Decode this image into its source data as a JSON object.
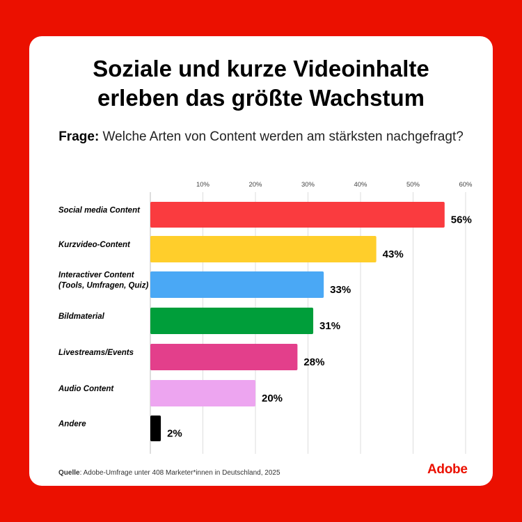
{
  "title_line1": "Soziale und kurze Videoinhalte",
  "title_line2": "erleben das größte Wachstum",
  "question": {
    "label": "Frage:",
    "text": " Welche Arten von Content werden am stärksten nachgefragt?"
  },
  "source": {
    "label": "Quelle",
    "text": ": Adobe-Umfrage unter 408 Marketer*innen in Deutschland, 2025"
  },
  "logo_text": "Adobe",
  "chart_data": {
    "type": "bar",
    "orientation": "horizontal",
    "xlim": [
      0,
      60
    ],
    "x_ticks": [
      10,
      20,
      30,
      40,
      50,
      60
    ],
    "x_tick_labels": [
      "10%",
      "20%",
      "30%",
      "40%",
      "50%",
      "60%"
    ],
    "grid": true,
    "categories": [
      [
        "Social media Content"
      ],
      [
        "Kurzvideo-Content"
      ],
      [
        "Interactiver Content",
        "(Tools, Umfragen, Quiz)"
      ],
      [
        "Bildmaterial"
      ],
      [
        "Livestreams/Events"
      ],
      [
        "Audio Content"
      ],
      [
        "Andere"
      ]
    ],
    "values": [
      56,
      43,
      33,
      31,
      28,
      20,
      2
    ],
    "value_labels": [
      "56%",
      "43%",
      "33%",
      "31%",
      "28%",
      "20%",
      "2%"
    ],
    "colors": [
      "#fa3b3f",
      "#ffce2b",
      "#4aa8f5",
      "#009e3a",
      "#e33f8b",
      "#eda5f0",
      "#000000"
    ]
  }
}
